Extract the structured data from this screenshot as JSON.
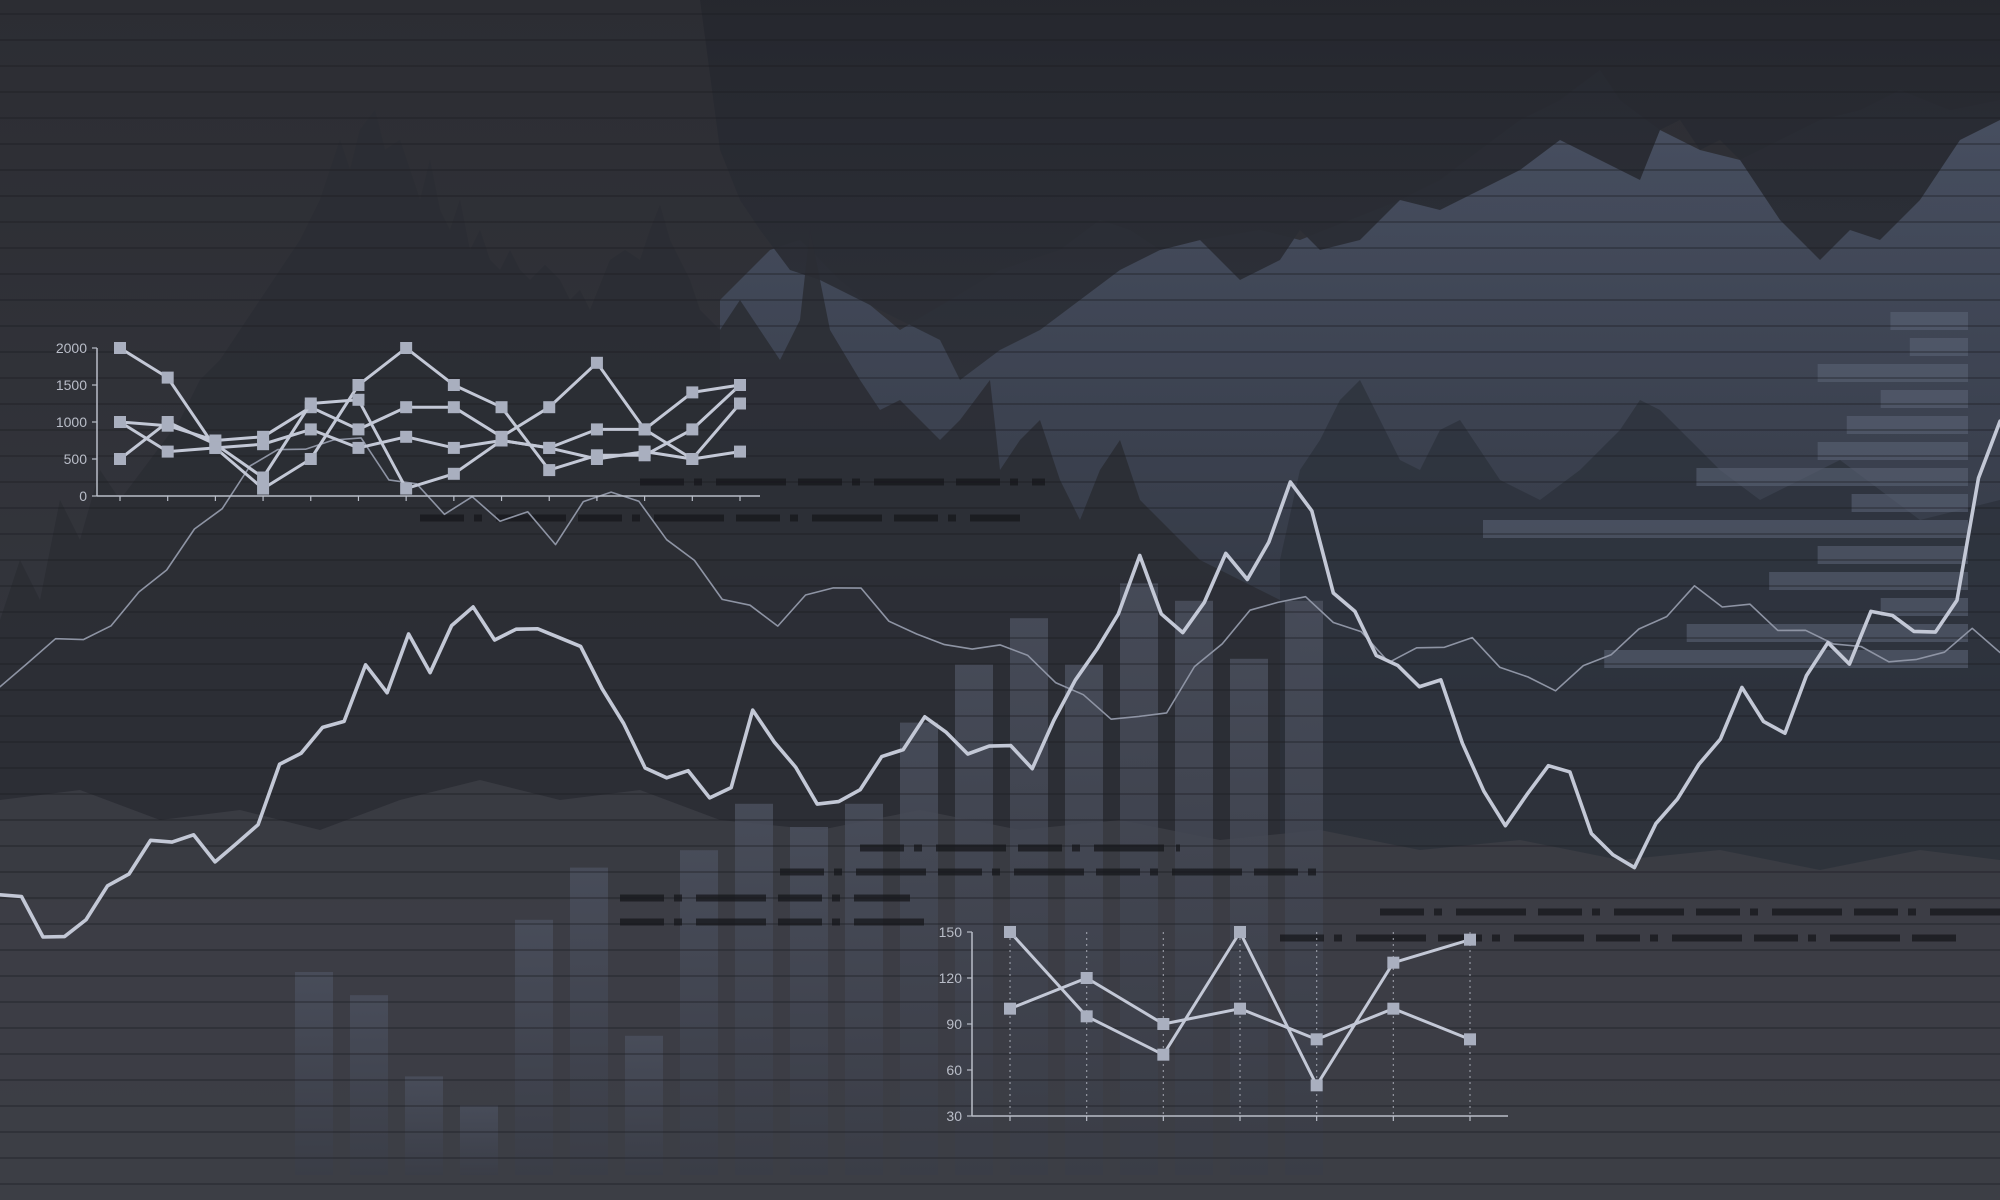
{
  "colors": {
    "background_top": "#2a2b31",
    "background_bottom": "#3a3c43",
    "mountain_dark": "#24262e",
    "mountain_blue": "#4b5568",
    "bar_fill": "#464a57",
    "hbar_fill": "#5a6275",
    "line_bright": "#c3c8d6",
    "line_thin": "#8e94a4",
    "marker_fill": "#a9afbf",
    "axis": "#b9bdc8"
  },
  "chart_data": [
    {
      "type": "line",
      "role": "top-left small line chart",
      "ylim": [
        0,
        2000
      ],
      "y_ticks": [
        "0",
        "500",
        "1000",
        "1500",
        "2000"
      ],
      "x": [
        1,
        2,
        3,
        4,
        5,
        6,
        7,
        8,
        9,
        10,
        11,
        12,
        13,
        14
      ],
      "series": [
        {
          "values": [
            2000,
            1600,
            650,
            100,
            500,
            1500,
            2000,
            1500,
            1200,
            350,
            550,
            550,
            900,
            1500
          ]
        },
        {
          "values": [
            1000,
            950,
            750,
            800,
            1200,
            900,
            1200,
            1200,
            800,
            1200,
            1800,
            900,
            500,
            1250
          ]
        },
        {
          "values": [
            500,
            1000,
            700,
            250,
            1250,
            1300,
            100,
            300,
            750,
            650,
            900,
            900,
            1400,
            1500
          ]
        },
        {
          "values": [
            1000,
            600,
            650,
            700,
            900,
            650,
            800,
            650,
            750,
            650,
            500,
            600,
            500,
            600
          ]
        }
      ]
    },
    {
      "type": "line",
      "role": "bottom-center small line chart",
      "ylim": [
        30,
        150
      ],
      "y_ticks": [
        "30",
        "60",
        "90",
        "120",
        "150"
      ],
      "x": [
        1,
        2,
        3,
        4,
        5,
        6,
        7
      ],
      "series": [
        {
          "values": [
            150,
            95,
            70,
            150,
            50,
            130,
            145
          ]
        },
        {
          "values": [
            100,
            120,
            90,
            100,
            80,
            100,
            80
          ]
        }
      ]
    },
    {
      "type": "bar",
      "role": "background vertical bars",
      "ylim": [
        0,
        100
      ],
      "values": [
        35,
        31,
        17,
        12,
        44,
        53,
        24,
        56,
        64,
        60,
        64,
        78,
        88,
        96,
        88,
        102,
        99,
        89,
        99
      ]
    },
    {
      "type": "bar",
      "role": "background horizontal bars",
      "xlim": [
        0,
        100
      ],
      "values": [
        16,
        12,
        31,
        18,
        25,
        31,
        56,
        24,
        100,
        31,
        41,
        18,
        58,
        75
      ]
    },
    {
      "type": "line",
      "role": "large bright background trend line",
      "values": [
        72,
        70,
        60,
        57,
        65,
        72,
        80,
        89,
        94,
        92,
        86,
        90,
        98,
        115,
        122,
        129,
        136,
        152,
        145,
        160,
        151,
        164,
        173,
        160,
        168,
        165,
        164,
        156,
        145,
        130,
        120,
        112,
        118,
        106,
        111,
        134,
        126,
        115,
        107,
        104,
        111,
        117,
        124,
        132,
        129,
        120,
        127,
        124,
        118,
        130,
        148,
        156,
        174,
        190,
        173,
        164,
        176,
        189,
        183,
        194,
        220,
        206,
        180,
        168,
        157,
        150,
        145,
        146,
        128,
        108,
        98,
        104,
        118,
        113,
        97,
        85,
        84,
        97,
        107,
        115,
        127,
        143,
        136,
        128,
        151,
        157,
        154,
        169,
        170,
        163,
        167,
        175,
        220,
        235
      ]
    },
    {
      "type": "line",
      "role": "thin background trend line",
      "values": [
        104,
        110,
        121,
        118,
        124,
        130,
        140,
        150,
        161,
        170,
        178,
        176,
        180,
        177,
        167,
        164,
        159,
        161,
        156,
        154,
        148,
        158,
        163,
        159,
        151,
        142,
        132,
        126,
        123,
        130,
        137,
        133,
        126,
        120,
        118,
        113,
        117,
        112,
        108,
        101,
        96,
        92,
        97,
        108,
        117,
        126,
        132,
        131,
        125,
        118,
        112,
        114,
        119,
        118,
        112,
        107,
        104,
        108,
        114,
        120,
        128,
        134,
        130,
        126,
        122,
        119,
        117,
        115,
        114,
        112,
        116,
        119,
        115
      ]
    }
  ]
}
